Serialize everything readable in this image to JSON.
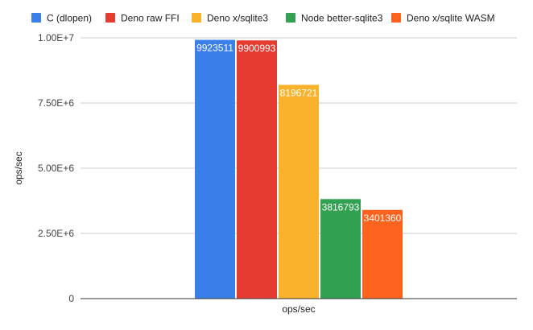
{
  "chart_data": {
    "type": "bar",
    "categories": [
      "ops/sec"
    ],
    "series": [
      {
        "name": "C (dlopen)",
        "values": [
          9923511
        ],
        "color": "#3b7fea",
        "label": "9923511"
      },
      {
        "name": "Deno raw FFI",
        "values": [
          9900993
        ],
        "color": "#e63b30",
        "label": "9900993"
      },
      {
        "name": "Deno x/sqlite3",
        "values": [
          8196721
        ],
        "color": "#f9b22b",
        "label": "8196721"
      },
      {
        "name": "Node better-sqlite3",
        "values": [
          3816793
        ],
        "color": "#33a152",
        "label": "3816793"
      },
      {
        "name": "Deno x/sqlite WASM",
        "values": [
          3401360
        ],
        "color": "#fd621f",
        "label": "3401360"
      }
    ],
    "title": "",
    "xlabel": "ops/sec",
    "ylabel": "ops/sec",
    "ylim": [
      0,
      10000000
    ],
    "yticks": [
      {
        "value": 0,
        "label": "0"
      },
      {
        "value": 2500000,
        "label": "2.50E+6"
      },
      {
        "value": 5000000,
        "label": "5.00E+6"
      },
      {
        "value": 7500000,
        "label": "7.50E+6"
      },
      {
        "value": 10000000,
        "label": "1.00E+7"
      }
    ],
    "grid": true,
    "legend_position": "top"
  }
}
